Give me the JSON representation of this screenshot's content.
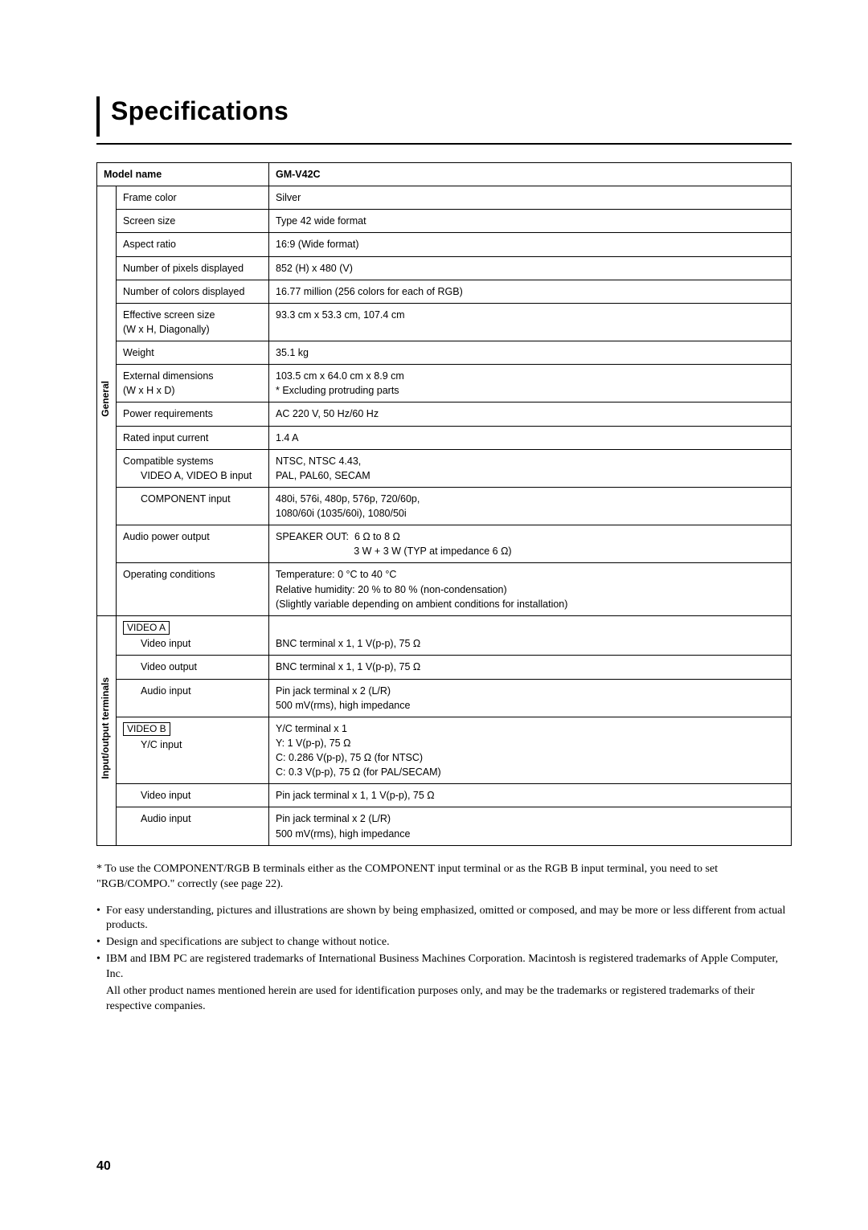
{
  "title": "Specifications",
  "header": {
    "label": "Model name",
    "value": "GM-V42C"
  },
  "sections": {
    "general": {
      "label": "General",
      "rows": [
        {
          "label": "Frame color",
          "value": "Silver"
        },
        {
          "label": "Screen size",
          "value": "Type 42 wide format"
        },
        {
          "label": "Aspect ratio",
          "value": "16:9 (Wide format)"
        },
        {
          "label": "Number of pixels displayed",
          "value": "852 (H) x 480 (V)"
        },
        {
          "label": "Number of colors displayed",
          "value": "16.77 million (256 colors for each of RGB)"
        },
        {
          "label": "Effective screen size\n(W x H, Diagonally)",
          "value": "93.3 cm x 53.3 cm, 107.4 cm"
        },
        {
          "label": "Weight",
          "value": "35.1 kg"
        },
        {
          "label": "External dimensions\n(W x H x D)",
          "value": "103.5 cm x 64.0 cm x 8.9 cm\n* Excluding protruding parts"
        },
        {
          "label": "Power requirements",
          "value": "AC 220 V, 50 Hz/60 Hz"
        },
        {
          "label": "Rated input current",
          "value": "1.4 A"
        },
        {
          "label": "Compatible systems",
          "sub1": "VIDEO A, VIDEO B input",
          "value": "NTSC, NTSC 4.43,\nPAL, PAL60, SECAM"
        },
        {
          "label": "",
          "sub1": "COMPONENT input",
          "value": "480i, 576i, 480p, 576p, 720/60p,\n1080/60i (1035/60i), 1080/50i"
        },
        {
          "label": "Audio power output",
          "value": "SPEAKER OUT:  6 Ω to 8 Ω\n                            3 W + 3 W (TYP at impedance 6 Ω)"
        },
        {
          "label": "Operating conditions",
          "value": "Temperature: 0 °C to 40 °C\nRelative humidity: 20 % to 80 % (non-condensation)\n(Slightly variable depending on ambient conditions for installation)"
        }
      ]
    },
    "io": {
      "label": "Input/output terminals",
      "rows": [
        {
          "box": "VIDEO A",
          "sub1": "Video input",
          "value": "BNC terminal x 1, 1 V(p-p), 75 Ω"
        },
        {
          "sub1": "Video output",
          "value": "BNC terminal x 1, 1 V(p-p), 75 Ω"
        },
        {
          "sub1": "Audio input",
          "value": "Pin jack terminal x 2 (L/R)\n500 mV(rms), high impedance"
        },
        {
          "box": "VIDEO B",
          "sub1": "Y/C input",
          "value": "Y/C terminal x 1\nY: 1 V(p-p), 75 Ω\nC: 0.286 V(p-p), 75 Ω (for NTSC)\nC: 0.3 V(p-p), 75 Ω (for PAL/SECAM)"
        },
        {
          "sub1": "Video input",
          "value": "Pin jack terminal x 1, 1 V(p-p), 75 Ω"
        },
        {
          "sub1": "Audio input",
          "value": "Pin jack terminal x 2 (L/R)\n500 mV(rms), high impedance"
        }
      ]
    }
  },
  "notes": {
    "star": "* To use the COMPONENT/RGB B terminals either as the COMPONENT input terminal or as the RGB B input terminal, you need to set \"RGB/COMPO.\" correctly (see page 22).",
    "bullets": [
      "For easy understanding, pictures and illustrations are shown by being emphasized, omitted or composed, and may be more or less different from actual products.",
      "Design and specifications are subject to change without notice.",
      "IBM and IBM PC are registered trademarks of International Business Machines Corporation. Macintosh is registered trademarks of Apple Computer, Inc."
    ],
    "sub": "All other product names mentioned herein are used for identification purposes only, and may be the trademarks or registered trademarks of their respective companies."
  },
  "pageNumber": "40"
}
